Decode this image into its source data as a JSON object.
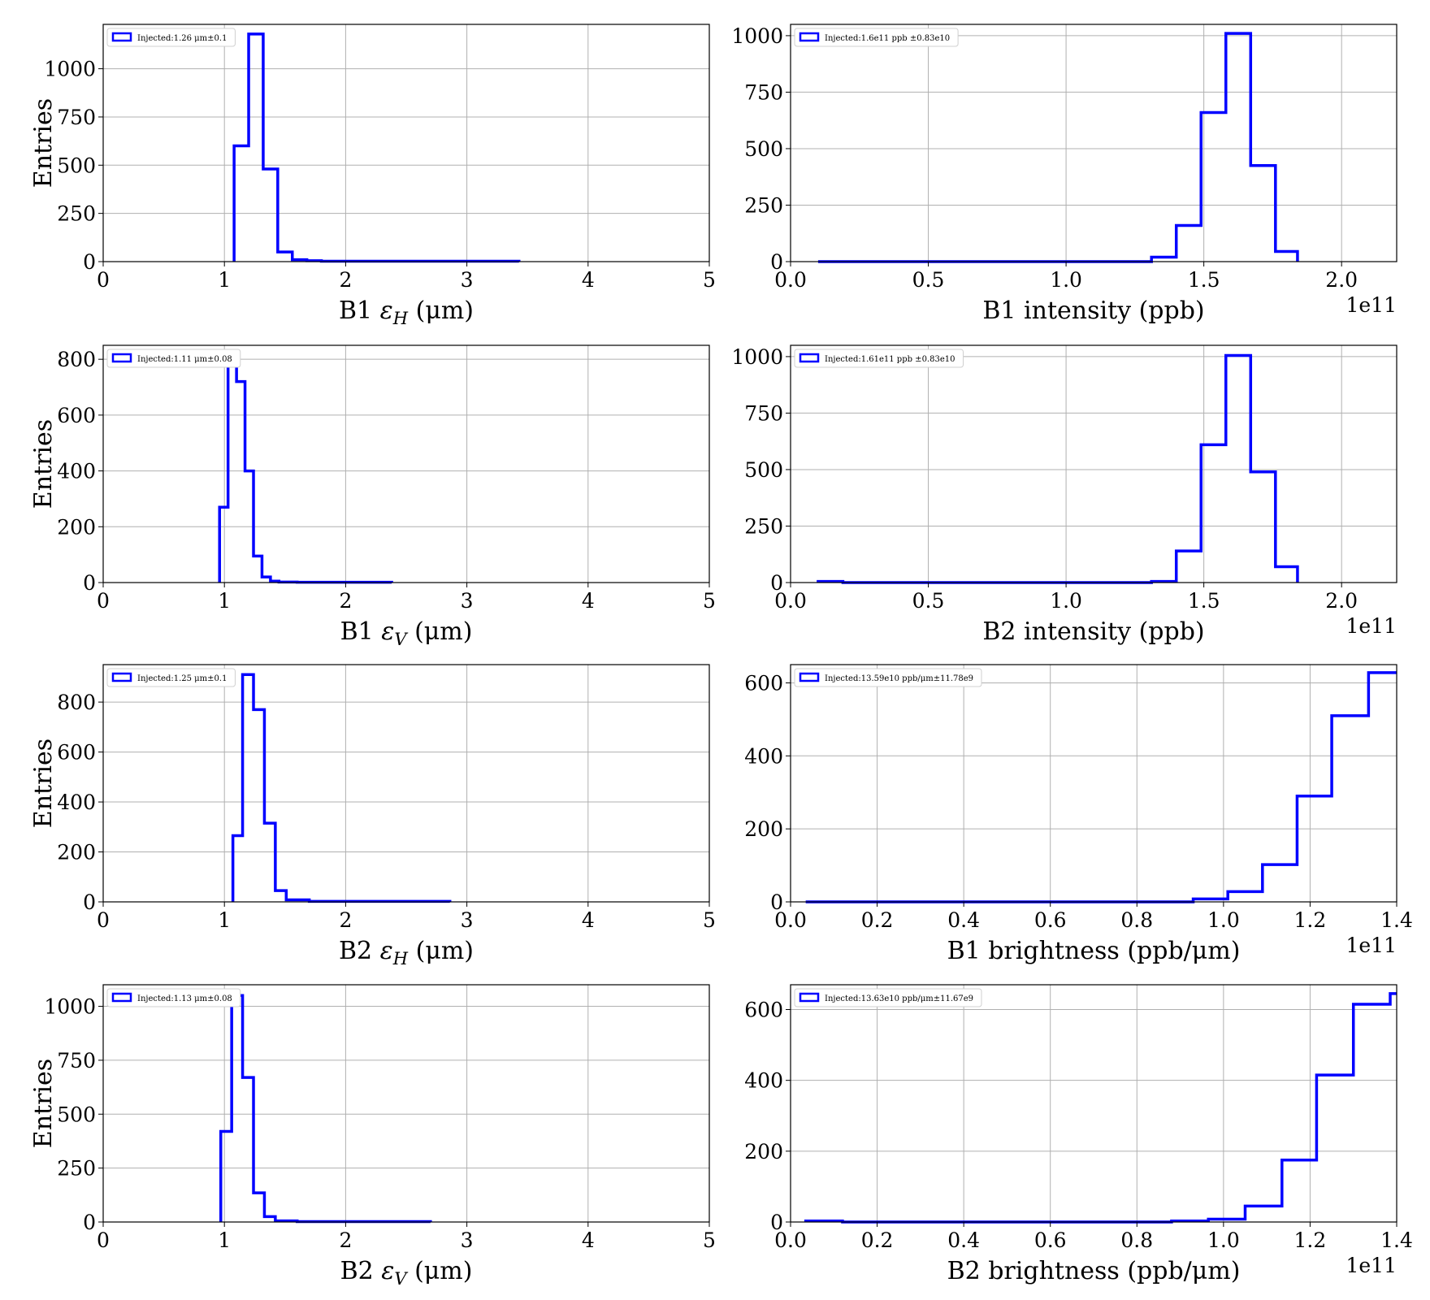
{
  "chart_data": [
    {
      "type": "histogram",
      "xlabel": "B1 εH (μm)",
      "ylabel": "Entries",
      "legend": "Injected:1.26 μm±0.1",
      "legend_position": "upper-left",
      "xlim": [
        0,
        5
      ],
      "ylim": [
        0,
        1230
      ],
      "xticks": [
        0,
        1,
        2,
        3,
        4,
        5
      ],
      "xtick_labels": [
        "0",
        "1",
        "2",
        "3",
        "4",
        "5"
      ],
      "yticks": [
        0,
        250,
        500,
        750,
        1000
      ],
      "ytick_labels": [
        "0",
        "250",
        "500",
        "750",
        "1000"
      ],
      "grid": true,
      "bin_edges": [
        1.08,
        1.2,
        1.32,
        1.44,
        1.56,
        1.68,
        1.8,
        3.43
      ],
      "counts": [
        600,
        1180,
        480,
        50,
        10,
        5,
        2
      ]
    },
    {
      "type": "histogram",
      "xlabel": "B1 intensity (ppb)",
      "ylabel": "",
      "offset_text": "1e11",
      "legend": "Injected:1.6e11 ppb ±0.83e10",
      "legend_position": "upper-left",
      "xlim": [
        0,
        2.2
      ],
      "ylim": [
        0,
        1050
      ],
      "xticks": [
        0,
        0.5,
        1,
        1.5,
        2
      ],
      "xtick_labels": [
        "0.0",
        "0.5",
        "1.0",
        "1.5",
        "2.0"
      ],
      "yticks": [
        0,
        250,
        500,
        750,
        1000
      ],
      "ytick_labels": [
        "0",
        "250",
        "500",
        "750",
        "1000"
      ],
      "grid": true,
      "bin_edges": [
        0.1,
        1.31,
        1.4,
        1.49,
        1.58,
        1.67,
        1.76,
        1.84
      ],
      "counts": [
        0,
        20,
        160,
        660,
        1010,
        425,
        45
      ]
    },
    {
      "type": "histogram",
      "xlabel": "B1 εV (μm)",
      "ylabel": "Entries",
      "legend": "Injected:1.11 μm±0.08",
      "legend_position": "upper-left",
      "xlim": [
        0,
        5
      ],
      "ylim": [
        0,
        850
      ],
      "xticks": [
        0,
        1,
        2,
        3,
        4,
        5
      ],
      "xtick_labels": [
        "0",
        "1",
        "2",
        "3",
        "4",
        "5"
      ],
      "yticks": [
        0,
        200,
        400,
        600,
        800
      ],
      "ytick_labels": [
        "0",
        "200",
        "400",
        "600",
        "800"
      ],
      "grid": true,
      "bin_edges": [
        0.96,
        1.03,
        1.1,
        1.17,
        1.24,
        1.31,
        1.38,
        1.45,
        1.6,
        2.38
      ],
      "counts": [
        270,
        810,
        720,
        400,
        95,
        20,
        5,
        2,
        1
      ]
    },
    {
      "type": "histogram",
      "xlabel": "B2 intensity (ppb)",
      "ylabel": "",
      "offset_text": "1e11",
      "legend": "Injected:1.61e11 ppb ±0.83e10",
      "legend_position": "upper-left",
      "xlim": [
        0,
        2.2
      ],
      "ylim": [
        0,
        1050
      ],
      "xticks": [
        0,
        0.5,
        1,
        1.5,
        2
      ],
      "xtick_labels": [
        "0.0",
        "0.5",
        "1.0",
        "1.5",
        "2.0"
      ],
      "yticks": [
        0,
        250,
        500,
        750,
        1000
      ],
      "ytick_labels": [
        "0",
        "250",
        "500",
        "750",
        "1000"
      ],
      "grid": true,
      "bin_edges": [
        0.1,
        0.19,
        1.31,
        1.4,
        1.49,
        1.58,
        1.67,
        1.76,
        1.84
      ],
      "counts": [
        5,
        0,
        5,
        140,
        610,
        1005,
        490,
        70
      ]
    },
    {
      "type": "histogram",
      "xlabel": "B2 εH (μm)",
      "ylabel": "Entries",
      "legend": "Injected:1.25 μm±0.1",
      "legend_position": "upper-left",
      "xlim": [
        0,
        5
      ],
      "ylim": [
        0,
        950
      ],
      "xticks": [
        0,
        1,
        2,
        3,
        4,
        5
      ],
      "xtick_labels": [
        "0",
        "1",
        "2",
        "3",
        "4",
        "5"
      ],
      "yticks": [
        0,
        200,
        400,
        600,
        800
      ],
      "ytick_labels": [
        "0",
        "200",
        "400",
        "600",
        "800"
      ],
      "grid": true,
      "bin_edges": [
        1.07,
        1.15,
        1.24,
        1.33,
        1.42,
        1.51,
        1.7,
        2.86
      ],
      "counts": [
        265,
        910,
        770,
        315,
        45,
        8,
        2
      ]
    },
    {
      "type": "histogram",
      "xlabel": "B1 brightness (ppb/μm)",
      "ylabel": "",
      "offset_text": "1e11",
      "legend": "Injected:13.59e10 ppb/μm±11.78e9",
      "legend_position": "upper-left",
      "xlim": [
        0,
        1.4
      ],
      "ylim": [
        0,
        650
      ],
      "xticks": [
        0,
        0.2,
        0.4,
        0.6,
        0.8,
        1.0,
        1.2,
        1.4
      ],
      "xtick_labels": [
        "0.0",
        "0.2",
        "0.4",
        "0.6",
        "0.8",
        "1.0",
        "1.2",
        "1.4"
      ],
      "yticks": [
        0,
        200,
        400,
        600
      ],
      "ytick_labels": [
        "0",
        "200",
        "400",
        "600"
      ],
      "grid": true,
      "bin_edges": [
        0.035,
        0.93,
        1.01,
        1.09,
        1.17,
        1.25,
        1.335,
        1.4
      ],
      "counts": [
        0,
        8,
        28,
        102,
        290,
        510,
        628
      ]
    },
    {
      "type": "histogram",
      "xlabel": "B2 εV (μm)",
      "ylabel": "Entries",
      "legend": "Injected:1.13 μm±0.08",
      "legend_position": "upper-left",
      "xlim": [
        0,
        5
      ],
      "ylim": [
        0,
        1100
      ],
      "xticks": [
        0,
        1,
        2,
        3,
        4,
        5
      ],
      "xtick_labels": [
        "0",
        "1",
        "2",
        "3",
        "4",
        "5"
      ],
      "yticks": [
        0,
        250,
        500,
        750,
        1000
      ],
      "ytick_labels": [
        "0",
        "250",
        "500",
        "750",
        "1000"
      ],
      "grid": true,
      "bin_edges": [
        0.97,
        1.06,
        1.15,
        1.24,
        1.33,
        1.42,
        1.6,
        2.7
      ],
      "counts": [
        420,
        1050,
        670,
        135,
        25,
        5,
        2
      ]
    },
    {
      "type": "histogram",
      "xlabel": "B2 brightness (ppb/μm)",
      "ylabel": "",
      "offset_text": "1e11",
      "legend": "Injected:13.63e10 ppb/μm±11.67e9",
      "legend_position": "upper-left",
      "xlim": [
        0,
        1.4
      ],
      "ylim": [
        0,
        670
      ],
      "xticks": [
        0,
        0.2,
        0.4,
        0.6,
        0.8,
        1.0,
        1.2,
        1.4
      ],
      "xtick_labels": [
        "0.0",
        "0.2",
        "0.4",
        "0.6",
        "0.8",
        "1.0",
        "1.2",
        "1.4"
      ],
      "yticks": [
        0,
        200,
        400,
        600
      ],
      "ytick_labels": [
        "0",
        "200",
        "400",
        "600"
      ],
      "grid": true,
      "bin_edges": [
        0.035,
        0.12,
        0.88,
        0.965,
        1.05,
        1.135,
        1.215,
        1.3,
        1.385,
        1.4
      ],
      "counts": [
        3,
        0,
        3,
        8,
        45,
        175,
        415,
        615,
        645
      ]
    }
  ]
}
